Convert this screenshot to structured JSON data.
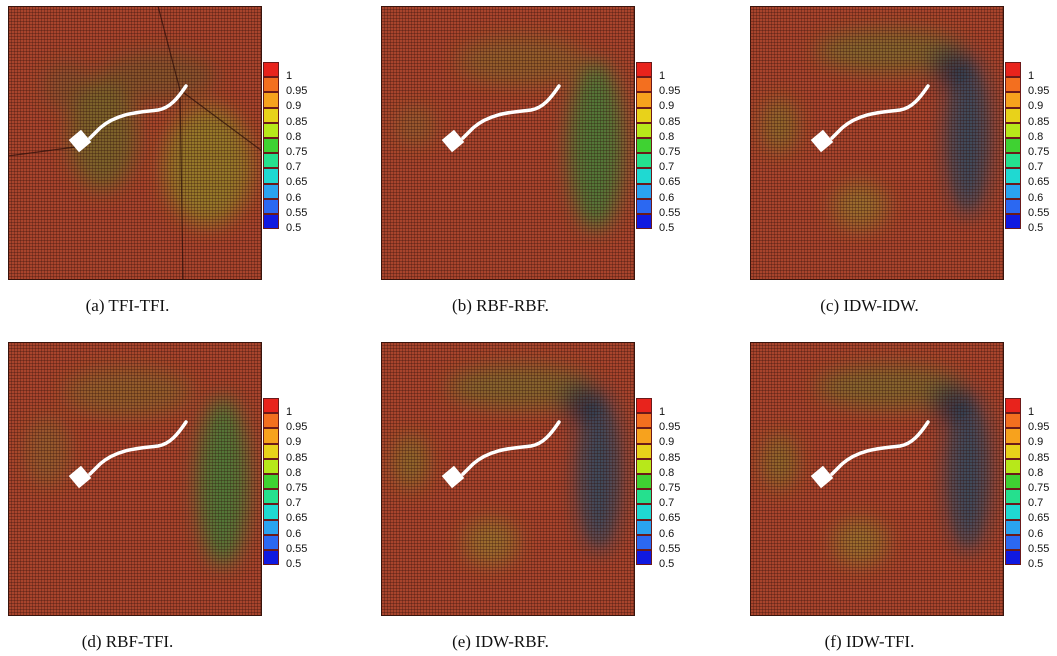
{
  "panels": [
    {
      "caption": "(a) TFI-TFI.",
      "method": "tfi"
    },
    {
      "caption": "(b) RBF-RBF.",
      "method": "rbf"
    },
    {
      "caption": "(c) IDW-IDW.",
      "method": "idw"
    },
    {
      "caption": "(d) RBF-TFI.",
      "method": "rbftfi"
    },
    {
      "caption": "(e) IDW-RBF.",
      "method": "idwrbf"
    },
    {
      "caption": "(f) IDW-TFI.",
      "method": "idwtfi"
    }
  ],
  "colorbar": {
    "levels": [
      "1",
      "0.95",
      "0.9",
      "0.85",
      "0.8",
      "0.75",
      "0.7",
      "0.65",
      "0.6",
      "0.55",
      "0.5"
    ],
    "colors": [
      "#e8231c",
      "#f36f1f",
      "#f7a21d",
      "#e8d21a",
      "#b7e81a",
      "#3fd232",
      "#25e08e",
      "#1fd9d2",
      "#2aa3f0",
      "#2b68f2",
      "#1019e0"
    ]
  },
  "colors": {
    "mesh_base": "#a8442c",
    "mesh_line": "#2a0d08",
    "geometry": "#ffffff"
  }
}
